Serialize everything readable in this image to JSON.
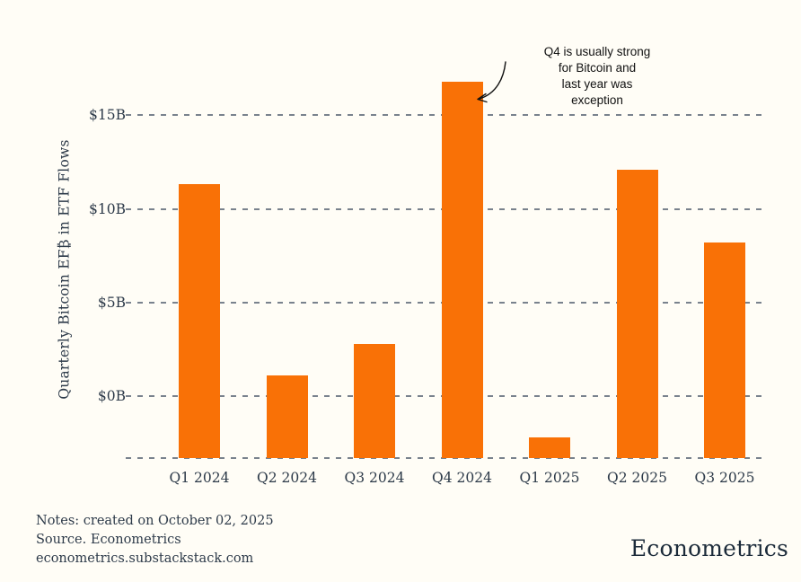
{
  "chart_data": {
    "type": "bar",
    "categories": [
      "Q1 2024",
      "Q2 2024",
      "Q3 2024",
      "Q4 2024",
      "Q1 2025",
      "Q2 2025",
      "Q3 2025"
    ],
    "values": [
      11.3,
      1.1,
      2.8,
      16.8,
      -2.2,
      12.1,
      8.2
    ],
    "ylabel": "Quarterly Bitcoin EF₿ in ETF Flows",
    "xlabel": "",
    "yticks": [
      {
        "label": "$0B",
        "value": 0
      },
      {
        "label": "$5B",
        "value": 5
      },
      {
        "label": "$10B",
        "value": 10
      },
      {
        "label": "$15B",
        "value": 15
      }
    ],
    "ylim": [
      -3.3,
      17.6
    ],
    "grid": "horizontal-dashed",
    "legend": "none",
    "bar_color": "#f97106",
    "annotation": {
      "text_lines": [
        "Q4 is usually strong",
        "for Bitcoin and",
        "last year was",
        "exception"
      ],
      "target_category": "Q4 2024"
    }
  },
  "footer": {
    "notes_line1": "Notes: created on October 02, 2025",
    "notes_line2": "Source. Econometrics",
    "notes_line3": "econometrics.substackstack.com",
    "brand": "Econometrics"
  },
  "colors": {
    "background": "#fffdf6",
    "bar": "#f97106",
    "grid": "#79828d",
    "tick_text": "#2d3a49",
    "brand_text": "#1c2b3a",
    "annotation_text": "#111111"
  }
}
